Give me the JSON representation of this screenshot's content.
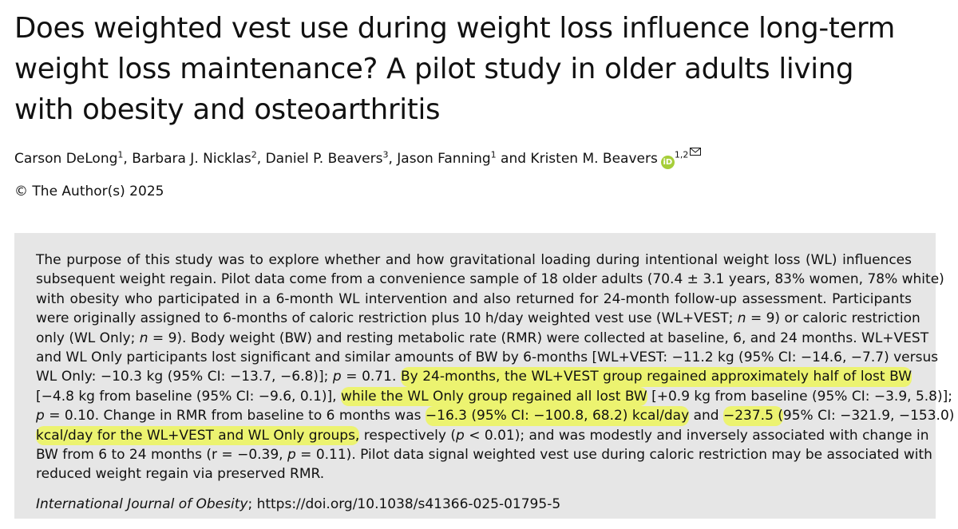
{
  "title": {
    "lines": [
      "Does weighted vest use during weight loss influence long-term",
      "weight loss maintenance? A pilot study in older adults living",
      "with obesity and osteoarthritis"
    ]
  },
  "authors": [
    {
      "text": "Carson DeLong",
      "sup": "1"
    },
    {
      "text": ", Barbara J. Nicklas",
      "sup": "2"
    },
    {
      "text": ", Daniel P. Beavers",
      "sup": "3"
    },
    {
      "text": ", Jason Fanning",
      "sup": "1"
    },
    {
      "text": " and Kristen M. Beavers",
      "sup": "1,2"
    }
  ],
  "copyright": "© The Author(s) 2025",
  "abstract": {
    "lines": [
      [
        {
          "text": "The purpose of this study was to explore whether and how gravitational loading during intentional weight loss (WL) influences"
        }
      ],
      [
        {
          "text": "subsequent weight regain. Pilot data come from a convenience sample of 18 older adults (70.4 ± 3.1 years, 83% women, 78% white)"
        }
      ],
      [
        {
          "text": "with obesity who participated in a 6-month WL intervention and also returned for 24-month follow-up assessment. Participants"
        }
      ],
      [
        {
          "text": "were originally assigned to 6-months of caloric restriction plus 10 h/day weighted vest use (WL+VEST; "
        },
        {
          "text": "n",
          "style": "italic"
        },
        {
          "text": " = 9) or caloric restriction"
        }
      ],
      [
        {
          "text": "only (WL Only; "
        },
        {
          "text": "n",
          "style": "italic"
        },
        {
          "text": " = 9). Body weight (BW) and resting metabolic rate (RMR) were collected at baseline, 6, and 24 months. WL+VEST"
        }
      ],
      [
        {
          "text": "and WL Only participants lost significant and similar amounts of BW by 6-months [WL+VEST: −11.2 kg (95% CI: −14.6, −7.7) versus"
        }
      ],
      [
        {
          "text": "WL Only: −10.3 kg (95% CI: −13.7, −6.8)]; "
        },
        {
          "text": "p",
          "style": "italic"
        },
        {
          "text": " = 0.71. "
        },
        {
          "text": "By 24-months, the WL+VEST group regained approximately half of lost BW",
          "style": "highlight"
        }
      ],
      [
        {
          "text": "[−4.8 kg from baseline (95% CI: −9.6, 0.1)], "
        },
        {
          "text": "while the WL Only group regained all lost BW",
          "style": "highlight"
        },
        {
          "text": " [+0.9 kg from baseline (95% CI: −3.9, 5.8)];"
        }
      ],
      [
        {
          "text": "p",
          "style": "italic"
        },
        {
          "text": " = 0.10. Change in RMR from baseline to 6 months was "
        },
        {
          "text": "−16.3 (95% CI: −100.8, 68.2) kcal/day",
          "style": "highlight"
        },
        {
          "text": " and "
        },
        {
          "text": "−237.5 (",
          "style": "highlight"
        },
        {
          "text": "95% CI: −321.9, −153.0)"
        }
      ],
      [
        {
          "text": "kcal/day for the WL+VEST and WL Only groups,",
          "style": "highlight"
        },
        {
          "text": " respectively ("
        },
        {
          "text": "p",
          "style": "italic"
        },
        {
          "text": " < 0.01); and was modestly and inversely associated with change in"
        }
      ],
      [
        {
          "text": "BW from 6 to 24 months (r = −0.39, "
        },
        {
          "text": "p",
          "style": "italic"
        },
        {
          "text": " = 0.11). Pilot data signal weighted vest use during caloric restriction may be associated with"
        }
      ],
      [
        {
          "text": "reduced weight regain via preserved RMR."
        }
      ]
    ]
  },
  "citation": {
    "journal": "International Journal of Obesity",
    "rest": "; https://doi.org/10.1038/s41366-025-01795-5"
  }
}
